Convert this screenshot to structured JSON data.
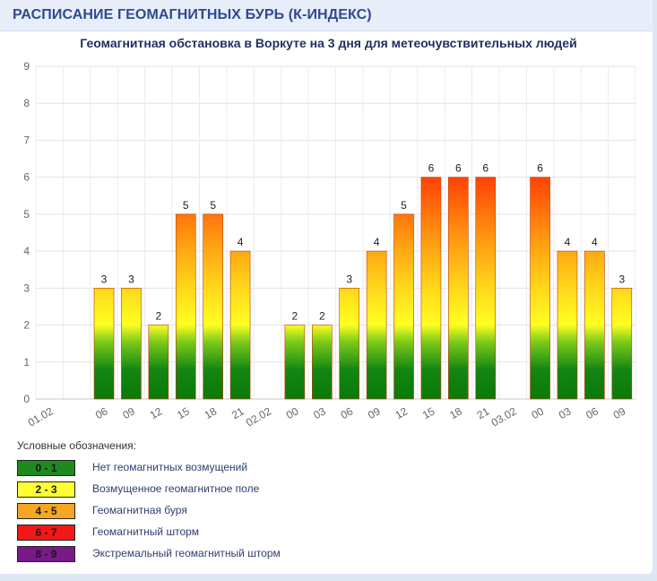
{
  "header": {
    "title": "РАСПИСАНИЕ ГЕОМАГНИТНЫХ БУРЬ (К-ИНДЕКС)"
  },
  "chart_data": {
    "type": "bar",
    "title": "Геомагнитная обстановка в Воркуте на 3 дня для метеочувствительных людей",
    "xlabel": "",
    "ylabel": "",
    "ylim": [
      0,
      9
    ],
    "yticks": [
      0,
      1,
      2,
      3,
      4,
      5,
      6,
      7,
      8,
      9
    ],
    "grid": true,
    "categories": [
      "01.02",
      "03",
      "06",
      "09",
      "12",
      "15",
      "18",
      "21",
      "02.02",
      "00",
      "03",
      "06",
      "09",
      "12",
      "15",
      "18",
      "21",
      "03.02",
      "00",
      "03",
      "06",
      "09"
    ],
    "values": [
      null,
      null,
      3,
      3,
      2,
      5,
      5,
      4,
      null,
      2,
      2,
      3,
      4,
      5,
      6,
      6,
      6,
      null,
      6,
      4,
      4,
      3
    ],
    "tick_labels": [
      "01.02",
      "06",
      "09",
      "12",
      "15",
      "18",
      "21",
      "02.02",
      "00",
      "03",
      "06",
      "09",
      "12",
      "15",
      "18",
      "21",
      "03.02",
      "00",
      "03",
      "06",
      "09"
    ]
  },
  "legend": {
    "title": "Условные обозначения:",
    "items": [
      {
        "range": "0 - 1",
        "label": "Нет геомагнитных возмущений",
        "color": "#1e8a1e",
        "text_color": "#1a1a1a"
      },
      {
        "range": "2 - 3",
        "label": "Возмущенное геомагнитное поле",
        "color": "#ffff33",
        "text_color": "#1a1a1a"
      },
      {
        "range": "4 - 5",
        "label": "Геомагнитная буря",
        "color": "#f5a623",
        "text_color": "#1a1a1a"
      },
      {
        "range": "6 - 7",
        "label": "Геомагнитный шторм",
        "color": "#f01818",
        "text_color": "#1a1a1a"
      },
      {
        "range": "8 - 9",
        "label": "Экстремальный геомагнитный шторм",
        "color": "#7a1a8a",
        "text_color": "#1a1a1a"
      }
    ]
  }
}
